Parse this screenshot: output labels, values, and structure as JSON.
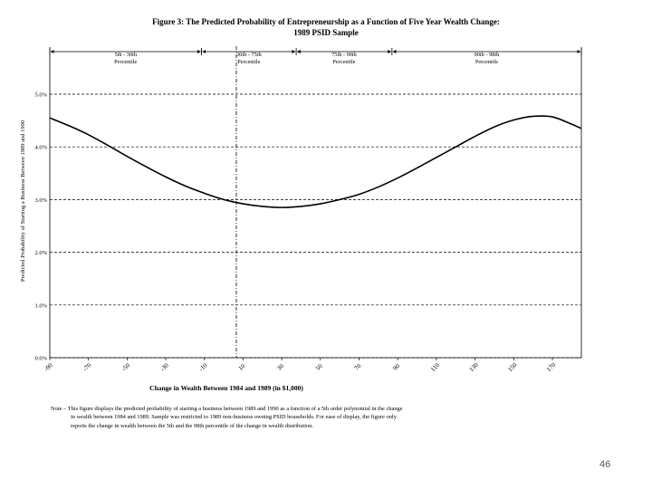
{
  "figure": {
    "title_line1": "Figure 3:  The Predicted Probability of Entrepreneurship as a Function of Five Year Wealth Change:",
    "title_line2": "1989 PSID Sample"
  },
  "chart_data": {
    "type": "line",
    "title": "The Predicted Probability of Entrepreneurship as a Function of Five Year Wealth Change: 1989 PSID Sample",
    "xlabel": "Change in Wealth Between 1984 and 1989 (in $1,000)",
    "ylabel": "Predicted Probability of Starting a Business Between 1989 and 1990",
    "xlim": [
      -90,
      185
    ],
    "ylim": [
      0,
      5
    ],
    "x_ticks": [
      -90,
      -70,
      -50,
      -30,
      -10,
      10,
      30,
      50,
      70,
      90,
      110,
      130,
      150,
      170
    ],
    "x_tick_labels": [
      "-90",
      "-70",
      "-50",
      "-30",
      "-10",
      "10",
      "30",
      "50",
      "70",
      "90",
      "110",
      "130",
      "150",
      "170"
    ],
    "y_ticks": [
      0,
      1,
      2,
      3,
      4,
      5
    ],
    "y_tick_labels": [
      "0.0%",
      "1.0%",
      "2.0%",
      "3.0%",
      "4.0%",
      "5.0%"
    ],
    "grid": "horizontal dashed at each y tick",
    "series": [
      {
        "name": "Predicted probability (%)",
        "x": [
          -90,
          -80,
          -70,
          -60,
          -50,
          -40,
          -30,
          -20,
          -10,
          0,
          10,
          20,
          30,
          40,
          50,
          60,
          70,
          80,
          90,
          100,
          110,
          120,
          130,
          140,
          150,
          160,
          170,
          180,
          185
        ],
        "y": [
          4.55,
          4.4,
          4.23,
          4.03,
          3.82,
          3.62,
          3.43,
          3.26,
          3.12,
          3.0,
          2.92,
          2.87,
          2.85,
          2.87,
          2.92,
          3.0,
          3.1,
          3.24,
          3.41,
          3.6,
          3.8,
          4.0,
          4.2,
          4.38,
          4.51,
          4.58,
          4.57,
          4.43,
          4.35
        ]
      }
    ],
    "reference_line": {
      "x": 6.5,
      "style": "dash-dot",
      "orientation": "vertical"
    },
    "percentile_brackets": [
      {
        "label_line1": "5th - 30th",
        "label_line2": "Percentile",
        "x_start": -90,
        "x_end": -11.5
      },
      {
        "label_line1": "30th - 75th",
        "label_line2": "Percentile",
        "x_start": -11.5,
        "x_end": 37.5
      },
      {
        "label_line1": "75th - 90th",
        "label_line2": "Percentile",
        "x_start": 37.5,
        "x_end": 87
      },
      {
        "label_line1": "90th - 98th",
        "label_line2": "Percentile",
        "x_start": 87,
        "x_end": 185
      }
    ]
  },
  "note": {
    "line1": "Note – This figure displays the predicted probability of starting a business between 1989 and 1990 as a function of a 5th order polynomial in the change",
    "line2": "in wealth between 1984 and 1989.  Sample was restricted to 1989 non-business owning PSID households.  For ease of display, the figure only",
    "line3": "reports the change in wealth between the 5th and the 98th percentile of the change in wealth distribution."
  },
  "page_number": "46"
}
